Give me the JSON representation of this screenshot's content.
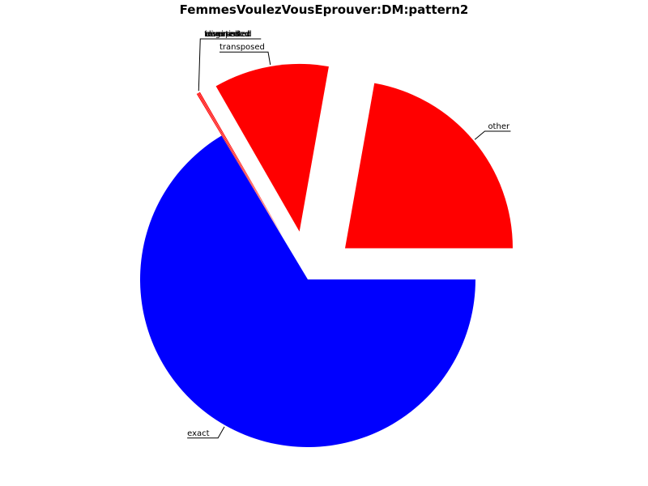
{
  "chart_data": {
    "type": "pie",
    "title": "FemmesVoulezVousEprouver:DM:pattern2",
    "slices": [
      {
        "label": "other",
        "value": 0.222,
        "color": "#ff0000"
      },
      {
        "label": "transposed",
        "value": 0.111,
        "color": "#ff0000"
      },
      {
        "label": "",
        "value": 0.001,
        "color": "#ff0000"
      },
      {
        "label": "",
        "value": 0.001,
        "color": "#ff0000"
      },
      {
        "label": "",
        "value": 0.001,
        "color": "#ff0000"
      },
      {
        "label": "exact",
        "value": 0.664,
        "color": "#0000ff"
      }
    ],
    "overlapping_labels": [
      "transposed",
      "augmented",
      "diminished",
      "reversed",
      "inverted"
    ]
  }
}
